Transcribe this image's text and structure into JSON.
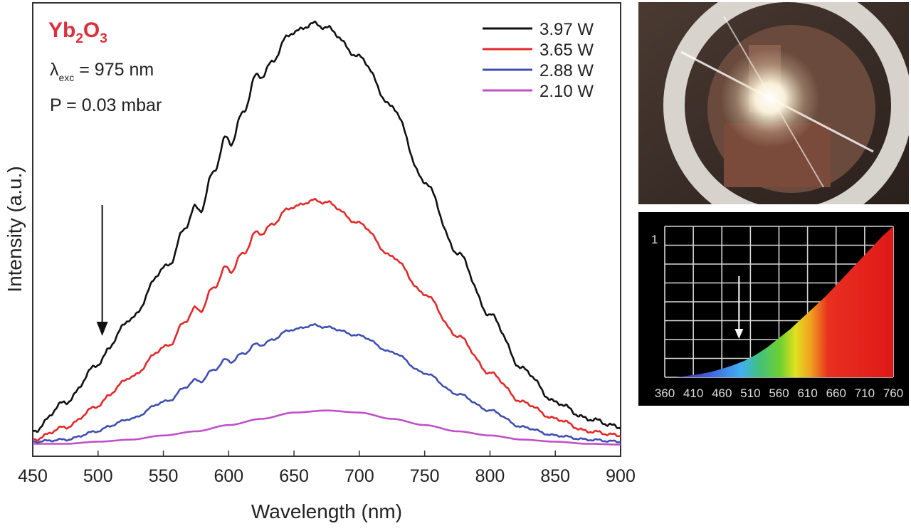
{
  "chart_data": [
    {
      "type": "line",
      "sample_label": {
        "base1": "Yb",
        "sub1": "2",
        "base2": "O",
        "sub2": "3"
      },
      "annotations": {
        "excitation": {
          "symbol": "λ",
          "subscript": "exc",
          "text": " = 975 nm"
        },
        "pressure": "P = 0.03 mbar"
      },
      "xlabel": "Wavelength (nm)",
      "ylabel": "Intensity (a.u.)",
      "xlim": [
        450,
        900
      ],
      "ylim": [
        -0.04,
        1.05
      ],
      "xticks": [
        "450",
        "500",
        "550",
        "600",
        "650",
        "700",
        "750",
        "800",
        "850",
        "900"
      ],
      "arrow_at_wavelength": 507,
      "series": [
        {
          "name": "3.97 W",
          "color": "#111111",
          "x": [
            450,
            475,
            500,
            525,
            550,
            575,
            600,
            625,
            650,
            665,
            675,
            700,
            725,
            750,
            775,
            800,
            825,
            850,
            875,
            900
          ],
          "y": [
            0.02,
            0.09,
            0.18,
            0.29,
            0.41,
            0.55,
            0.72,
            0.88,
            0.98,
            1.0,
            0.99,
            0.92,
            0.8,
            0.62,
            0.45,
            0.3,
            0.17,
            0.09,
            0.05,
            0.03
          ],
          "ripple": [
            0.004,
            0.012,
            0.013
          ]
        },
        {
          "name": "3.65 W",
          "color": "#e02a2a",
          "x": [
            450,
            475,
            500,
            525,
            550,
            575,
            600,
            625,
            650,
            665,
            675,
            700,
            725,
            750,
            775,
            800,
            825,
            850,
            875,
            900
          ],
          "y": [
            0.0,
            0.03,
            0.08,
            0.15,
            0.22,
            0.31,
            0.41,
            0.5,
            0.56,
            0.575,
            0.57,
            0.52,
            0.44,
            0.35,
            0.25,
            0.16,
            0.09,
            0.05,
            0.02,
            0.01
          ],
          "ripple": [
            0.003,
            0.008,
            0.01
          ]
        },
        {
          "name": "2.88 W",
          "color": "#3f4fb0",
          "x": [
            450,
            475,
            500,
            525,
            550,
            575,
            600,
            625,
            650,
            665,
            675,
            700,
            725,
            750,
            775,
            800,
            825,
            850,
            875,
            900
          ],
          "y": [
            -0.005,
            0.0,
            0.02,
            0.05,
            0.09,
            0.14,
            0.19,
            0.23,
            0.265,
            0.275,
            0.27,
            0.25,
            0.21,
            0.16,
            0.11,
            0.07,
            0.03,
            0.01,
            0.0,
            -0.005
          ],
          "ripple": [
            0.002,
            0.004,
            0.005
          ]
        },
        {
          "name": "2.10 W",
          "color": "#c050c8",
          "x": [
            450,
            475,
            500,
            525,
            550,
            575,
            600,
            625,
            650,
            675,
            700,
            725,
            750,
            775,
            800,
            825,
            850,
            875,
            900
          ],
          "y": [
            -0.01,
            -0.01,
            -0.005,
            0.0,
            0.01,
            0.02,
            0.035,
            0.05,
            0.065,
            0.07,
            0.065,
            0.05,
            0.035,
            0.02,
            0.01,
            0.0,
            -0.005,
            -0.01,
            -0.012
          ],
          "ripple": [
            0.0,
            0.0,
            0.0
          ]
        }
      ]
    },
    {
      "type": "area",
      "xlim": [
        360,
        760
      ],
      "ylim": [
        0,
        1
      ],
      "xticks": [
        "360",
        "410",
        "460",
        "510",
        "560",
        "610",
        "660",
        "710",
        "760"
      ],
      "ytick_label": "1",
      "arrow_at_wavelength": 490,
      "x": [
        380,
        400,
        420,
        440,
        460,
        480,
        500,
        520,
        540,
        560,
        580,
        600,
        620,
        640,
        660,
        680,
        700,
        720,
        740,
        760
      ],
      "y": [
        0.0,
        0.01,
        0.02,
        0.035,
        0.055,
        0.08,
        0.11,
        0.15,
        0.2,
        0.26,
        0.32,
        0.39,
        0.46,
        0.53,
        0.61,
        0.69,
        0.77,
        0.85,
        0.93,
        1.0
      ]
    }
  ],
  "photo": {
    "description": "glowing sample in vacuum chamber",
    "colors": {
      "glow": "#fffbe8",
      "chamber": "#6a4a3c"
    }
  }
}
